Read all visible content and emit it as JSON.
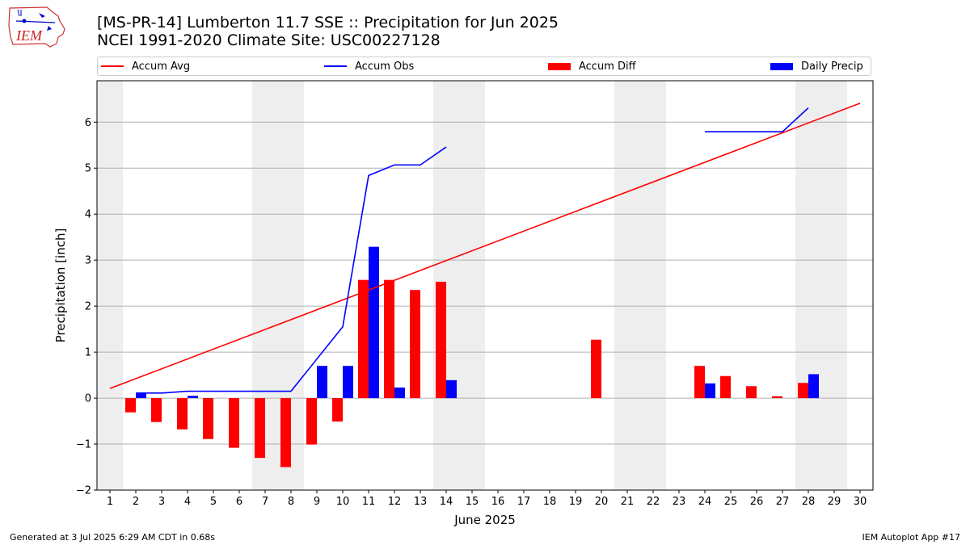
{
  "header": {
    "title_line1": "[MS-PR-14] Lumberton 11.7 SSE :: Precipitation for Jun 2025",
    "title_line2": "NCEI 1991-2020 Climate Site: USC00227128",
    "logo_text": "IEM"
  },
  "footer": {
    "generated": "Generated at 3 Jul 2025 6:29 AM CDT in 0.68s",
    "app": "IEM Autoplot App #17"
  },
  "colors": {
    "avg": "#ff0000",
    "obs": "#0000ff",
    "diff": "#ff0000",
    "daily": "#0000ff",
    "weekend_shade": "#eeeeee",
    "grid": "#b0b0b0"
  },
  "chart_data": {
    "type": "bar",
    "xlabel": "June 2025",
    "ylabel": "Precipitation [inch]",
    "xlim": [
      0.5,
      30.5
    ],
    "ylim": [
      -2.0,
      6.9
    ],
    "yticks": [
      -2,
      -1,
      0,
      1,
      2,
      3,
      4,
      5,
      6
    ],
    "ytick_labels": [
      "−2",
      "−1",
      "0",
      "1",
      "2",
      "3",
      "4",
      "5",
      "6"
    ],
    "x": [
      1,
      2,
      3,
      4,
      5,
      6,
      7,
      8,
      9,
      10,
      11,
      12,
      13,
      14,
      15,
      16,
      17,
      18,
      19,
      20,
      21,
      22,
      23,
      24,
      25,
      26,
      27,
      28,
      29,
      30
    ],
    "grid": "horizontal",
    "legend_position": "top",
    "weekend_shading": [
      [
        0.5,
        1.5
      ],
      [
        6.5,
        8.5
      ],
      [
        13.5,
        15.5
      ],
      [
        20.5,
        22.5
      ],
      [
        27.5,
        29.5
      ]
    ],
    "series": [
      {
        "name": "Accum Avg",
        "kind": "line",
        "x": [
          1,
          30
        ],
        "values": [
          0.21,
          6.41
        ]
      },
      {
        "name": "Accum Obs",
        "kind": "line",
        "segments": [
          {
            "x": [
              2,
              3,
              4,
              5,
              6,
              7,
              8,
              9,
              10,
              11,
              12,
              13,
              14
            ],
            "values": [
              0.11,
              0.11,
              0.15,
              0.15,
              0.15,
              0.15,
              0.15,
              0.85,
              1.55,
              4.84,
              5.07,
              5.07,
              5.46
            ]
          },
          {
            "x": [
              24,
              25,
              26,
              27,
              28
            ],
            "values": [
              5.79,
              5.79,
              5.79,
              5.79,
              6.31
            ]
          }
        ]
      },
      {
        "name": "Accum Diff",
        "kind": "bar",
        "x": [
          2,
          3,
          4,
          5,
          6,
          7,
          8,
          9,
          10,
          11,
          12,
          13,
          14,
          20,
          24,
          25,
          26,
          27,
          28
        ],
        "values": [
          -0.31,
          -0.52,
          -0.68,
          -0.89,
          -1.08,
          -1.3,
          -1.5,
          -1.01,
          -0.51,
          2.57,
          2.57,
          2.35,
          2.53,
          1.27,
          0.7,
          0.48,
          0.26,
          0.04,
          0.33
        ]
      },
      {
        "name": "Daily Precip",
        "kind": "bar",
        "x": [
          2,
          4,
          9,
          10,
          11,
          12,
          14,
          24,
          28
        ],
        "values": [
          0.11,
          0.05,
          0.7,
          0.7,
          3.29,
          0.23,
          0.39,
          0.32,
          0.52
        ]
      }
    ]
  }
}
